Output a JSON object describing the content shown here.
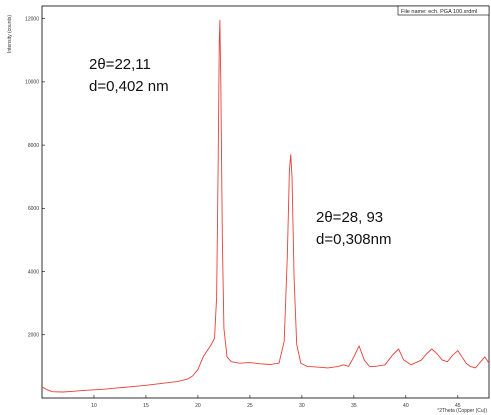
{
  "chart_data": {
    "type": "line",
    "xlabel": "°2Theta (Copper (Cu))",
    "ylabel": "Intensity (counts)",
    "file_label": "File name: ech. PGA 100.xrdml",
    "xlim": [
      5,
      48
    ],
    "ylim": [
      0,
      12400
    ],
    "x_ticks": [
      10,
      15,
      20,
      25,
      30,
      35,
      40,
      45
    ],
    "y_ticks": [
      2000,
      4000,
      6000,
      8000,
      10000,
      12000
    ],
    "grid": false,
    "line_color": "#e8403a",
    "annotations": [
      {
        "lines": [
          "2θ=22,11",
          "d=0,402 nm"
        ]
      },
      {
        "lines": [
          "2θ=28, 93",
          "d=0,308nm"
        ]
      }
    ],
    "series": [
      {
        "x": [
          5.0,
          5.5,
          6.0,
          7.0,
          8.0,
          9.0,
          10.0,
          11.0,
          12.0,
          13.0,
          14.0,
          15.0,
          16.0,
          17.0,
          18.0,
          19.0,
          19.5,
          20.0,
          20.5,
          21.0,
          21.3,
          21.6,
          21.8,
          21.95,
          22.05,
          22.11,
          22.2,
          22.35,
          22.5,
          22.8,
          23.2,
          24.0,
          25.0,
          26.0,
          27.0,
          27.8,
          28.3,
          28.6,
          28.8,
          28.93,
          29.05,
          29.25,
          29.5,
          29.9,
          30.5,
          31.5,
          32.5,
          33.5,
          34.0,
          34.5,
          35.0,
          35.5,
          36.0,
          36.5,
          37.0,
          38.0,
          38.7,
          39.3,
          39.8,
          40.5,
          41.5,
          42.0,
          42.5,
          43.0,
          43.5,
          44.0,
          44.5,
          45.0,
          45.4,
          45.8,
          46.2,
          46.7,
          47.2,
          47.6,
          48.0
        ],
        "y": [
          350,
          260,
          200,
          190,
          210,
          240,
          260,
          280,
          310,
          340,
          370,
          400,
          440,
          480,
          520,
          600,
          700,
          900,
          1300,
          1550,
          1700,
          1900,
          3200,
          7500,
          11200,
          11950,
          10000,
          5000,
          2200,
          1300,
          1150,
          1100,
          1120,
          1080,
          1060,
          1100,
          1800,
          4500,
          7200,
          7700,
          7000,
          3800,
          1700,
          1100,
          1000,
          980,
          950,
          1000,
          1050,
          1000,
          1300,
          1650,
          1200,
          1000,
          1000,
          1050,
          1350,
          1550,
          1200,
          1050,
          1200,
          1400,
          1550,
          1400,
          1200,
          1150,
          1350,
          1500,
          1300,
          1100,
          1000,
          950,
          1150,
          1300,
          1100
        ]
      }
    ]
  }
}
